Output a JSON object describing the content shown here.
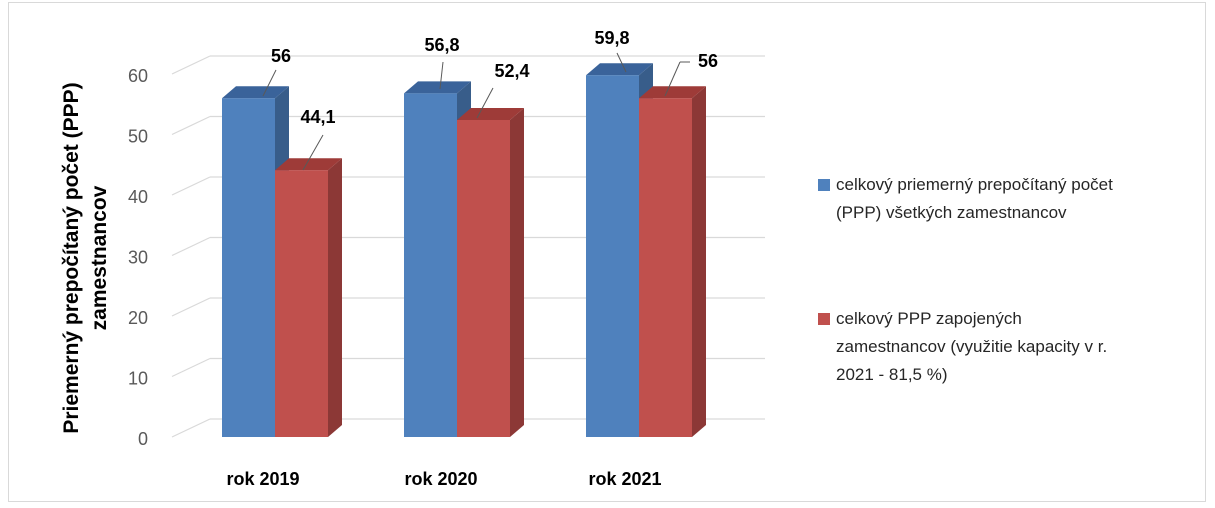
{
  "chart_data": {
    "type": "bar",
    "ylabel_lines": [
      "Priemerný prepočítaný počet (PPP)",
      "zamestnancov"
    ],
    "categories": [
      "rok 2019",
      "rok 2020",
      "rok 2021"
    ],
    "series": [
      {
        "name_lines": [
          "celkový priemerný prepočítaný počet",
          "(PPP) všetkých zamestnancov"
        ],
        "values": [
          56,
          56.8,
          59.8
        ],
        "labels": [
          "56",
          "56,8",
          "59,8"
        ],
        "color": "#4f81bd",
        "side_color": "#385d8a",
        "top_color": "#3a639a"
      },
      {
        "name_lines": [
          "celkový PPP zapojených",
          "zamestnancov (využitie kapacity v r.",
          "2021 - 81,5 %)"
        ],
        "values": [
          44.1,
          52.4,
          56
        ],
        "labels": [
          "44,1",
          "52,4",
          "56"
        ],
        "color": "#c0504d",
        "side_color": "#8c3836",
        "top_color": "#9e3b38"
      }
    ],
    "yticks": [
      0,
      10,
      20,
      30,
      40,
      50,
      60
    ],
    "ylim": [
      0,
      60
    ],
    "grid": true,
    "legend_position": "right"
  }
}
